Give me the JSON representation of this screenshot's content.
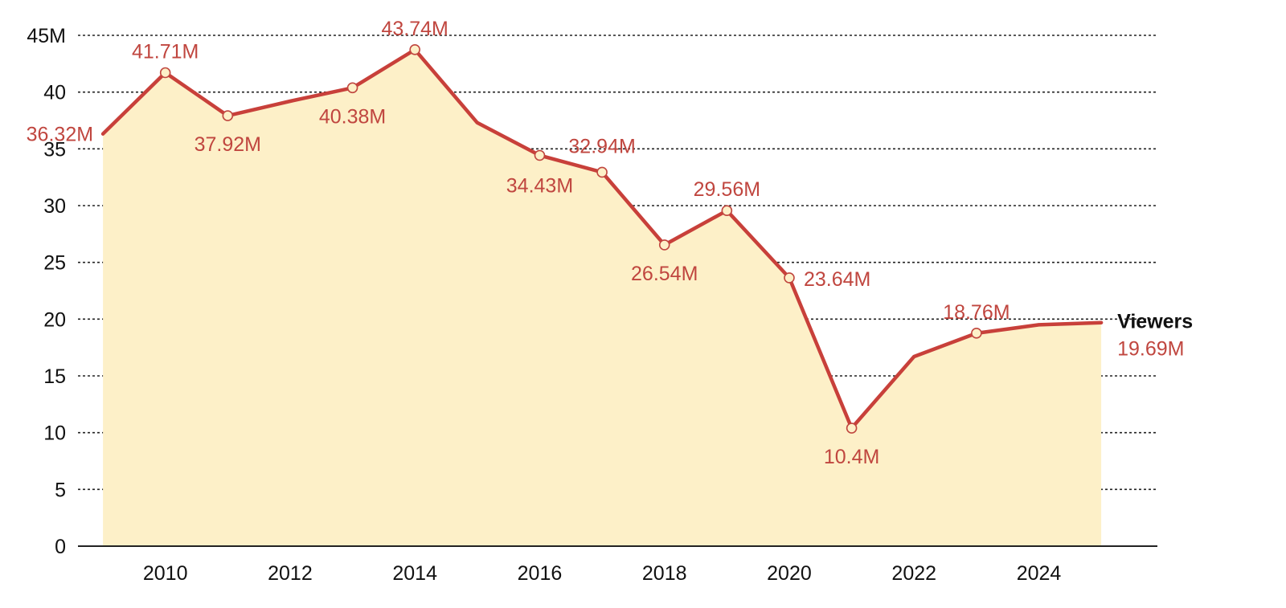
{
  "chart_data": {
    "type": "area",
    "title": "",
    "xlabel": "",
    "ylabel": "",
    "ylim": [
      0,
      45
    ],
    "xlim": [
      2008.6,
      2025.9
    ],
    "grid": true,
    "y_ticks": [
      0,
      5,
      10,
      15,
      20,
      25,
      30,
      35,
      40,
      45
    ],
    "y_tick_labels": [
      "0",
      "5",
      "10",
      "15",
      "20",
      "25",
      "30",
      "35",
      "40",
      "45M"
    ],
    "x_ticks": [
      2010,
      2012,
      2014,
      2016,
      2018,
      2020,
      2022,
      2024
    ],
    "x_tick_labels": [
      "2010",
      "2012",
      "2014",
      "2016",
      "2018",
      "2020",
      "2022",
      "2024"
    ],
    "series": [
      {
        "name": "Viewers",
        "x": [
          2009,
          2010,
          2011,
          2012,
          2013,
          2014,
          2015,
          2016,
          2017,
          2018,
          2019,
          2020,
          2021,
          2022,
          2023,
          2024,
          2025
        ],
        "values": [
          36.32,
          41.71,
          37.92,
          39.2,
          40.38,
          43.74,
          37.3,
          34.43,
          32.94,
          26.54,
          29.56,
          23.64,
          10.4,
          16.7,
          18.76,
          19.5,
          19.69
        ],
        "data_labels": [
          {
            "x": 2009,
            "text": "36.32M",
            "marker": false
          },
          {
            "x": 2010,
            "text": "41.71M",
            "marker": true
          },
          {
            "x": 2011,
            "text": "37.92M",
            "marker": true
          },
          {
            "x": 2013,
            "text": "40.38M",
            "marker": true
          },
          {
            "x": 2014,
            "text": "43.74M",
            "marker": true
          },
          {
            "x": 2016,
            "text": "34.43M",
            "marker": true
          },
          {
            "x": 2017,
            "text": "32.94M",
            "marker": true
          },
          {
            "x": 2018,
            "text": "26.54M",
            "marker": true
          },
          {
            "x": 2019,
            "text": "29.56M",
            "marker": true
          },
          {
            "x": 2020,
            "text": "23.64M",
            "marker": true
          },
          {
            "x": 2021,
            "text": "10.4M",
            "marker": true
          },
          {
            "x": 2023,
            "text": "18.76M",
            "marker": true
          },
          {
            "x": 2025,
            "text": "19.69M",
            "marker": false
          }
        ]
      }
    ]
  },
  "colors": {
    "line": "#c8403a",
    "area": "#fdf0c8",
    "label": "#c0463f"
  }
}
